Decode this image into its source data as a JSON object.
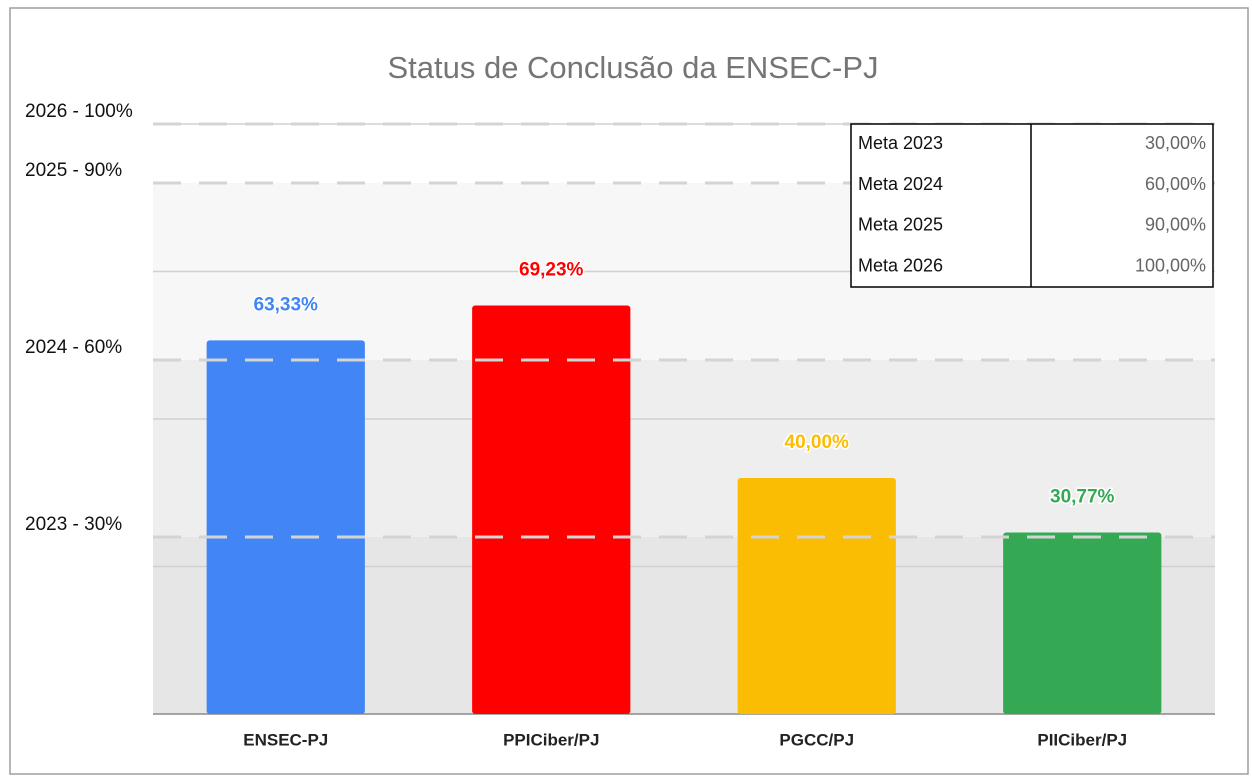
{
  "chart_data": {
    "type": "bar",
    "title": "Status de Conclusão da ENSEC-PJ",
    "categories": [
      "ENSEC-PJ",
      "PPICiber/PJ",
      "PGCC/PJ",
      "PIICiber/PJ"
    ],
    "values": [
      63.33,
      69.23,
      40.0,
      30.77
    ],
    "value_labels": [
      "63,33%",
      "69,23%",
      "40,00%",
      "30,77%"
    ],
    "colors": [
      "#4285f4",
      "#ff0000",
      "#fbbc04",
      "#34a853"
    ],
    "ylim": [
      0,
      100
    ],
    "yticks": [
      {
        "value": 30,
        "label": "2023 - 30%"
      },
      {
        "value": 60,
        "label": "2024 - 60%"
      },
      {
        "value": 90,
        "label": "2025 - 90%"
      },
      {
        "value": 100,
        "label": "2026 - 100%"
      }
    ],
    "gridlines": [
      25,
      50,
      75,
      100
    ],
    "band_colors": [
      "#e6e6e6",
      "#eeeeee",
      "#f7f7f7",
      "#ffffff"
    ],
    "goals_table": [
      {
        "label": "Meta 2023",
        "value": 30,
        "value_label": "30,00%"
      },
      {
        "label": "Meta 2024",
        "value": 60,
        "value_label": "60,00%"
      },
      {
        "label": "Meta 2025",
        "value": 90,
        "value_label": "90,00%"
      },
      {
        "label": "Meta 2026",
        "value": 100,
        "value_label": "100,00%"
      }
    ]
  }
}
